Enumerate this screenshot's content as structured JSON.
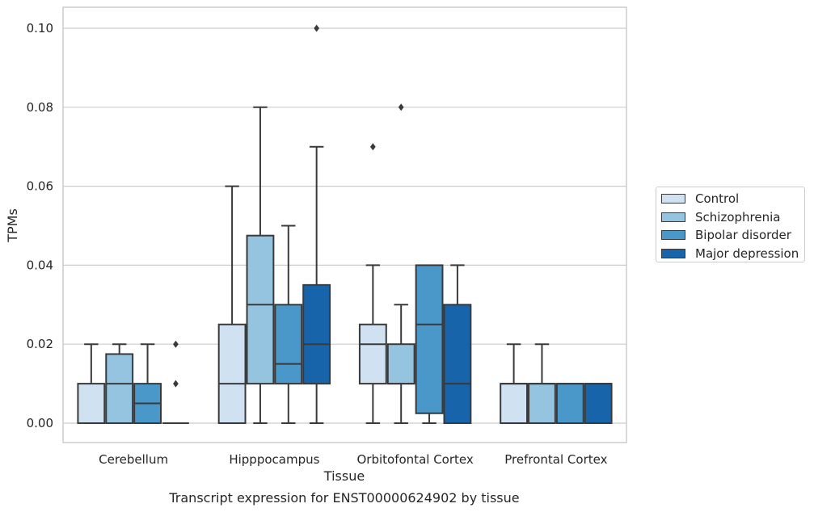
{
  "chart_data": {
    "type": "box",
    "title": "Transcript expression for ENST00000624902 by tissue",
    "xlabel": "Tissue",
    "ylabel": "TPMs",
    "ylim": [
      -0.005,
      0.105
    ],
    "yticks": [
      "0.00",
      "0.02",
      "0.04",
      "0.06",
      "0.08",
      "0.10"
    ],
    "grid": "horizontal",
    "legend_position": "right",
    "categories": [
      "Cerebellum",
      "Hipppocampus",
      "Orbitofontal Cortex",
      "Prefrontal Cortex"
    ],
    "series": [
      {
        "name": "Control",
        "color": "#d0e1f2",
        "boxes": [
          {
            "min": 0.0,
            "q1": 0.0,
            "median": 0.0,
            "q3": 0.01,
            "max": 0.02,
            "outliers": []
          },
          {
            "min": 0.0,
            "q1": 0.0,
            "median": 0.01,
            "q3": 0.025,
            "max": 0.06,
            "outliers": []
          },
          {
            "min": 0.0,
            "q1": 0.01,
            "median": 0.02,
            "q3": 0.025,
            "max": 0.04,
            "outliers": [
              0.07
            ]
          },
          {
            "min": 0.0,
            "q1": 0.0,
            "median": 0.01,
            "q3": 0.01,
            "max": 0.02,
            "outliers": []
          }
        ]
      },
      {
        "name": "Schizophrenia",
        "color": "#94c4df",
        "boxes": [
          {
            "min": 0.0,
            "q1": 0.0,
            "median": 0.01,
            "q3": 0.0175,
            "max": 0.02,
            "outliers": []
          },
          {
            "min": 0.0,
            "q1": 0.01,
            "median": 0.03,
            "q3": 0.0475,
            "max": 0.08,
            "outliers": []
          },
          {
            "min": 0.0,
            "q1": 0.01,
            "median": 0.01,
            "q3": 0.02,
            "max": 0.03,
            "outliers": [
              0.08
            ]
          },
          {
            "min": 0.0,
            "q1": 0.0,
            "median": 0.01,
            "q3": 0.01,
            "max": 0.02,
            "outliers": []
          }
        ]
      },
      {
        "name": "Bipolar disorder",
        "color": "#4a98c9",
        "boxes": [
          {
            "min": 0.0,
            "q1": 0.0,
            "median": 0.005,
            "q3": 0.01,
            "max": 0.02,
            "outliers": []
          },
          {
            "min": 0.0,
            "q1": 0.01,
            "median": 0.015,
            "q3": 0.03,
            "max": 0.05,
            "outliers": []
          },
          {
            "min": 0.0,
            "q1": 0.0025,
            "median": 0.025,
            "q3": 0.04,
            "max": 0.04,
            "outliers": []
          },
          {
            "min": 0.0,
            "q1": 0.0,
            "median": 0.01,
            "q3": 0.01,
            "max": 0.01,
            "outliers": []
          }
        ]
      },
      {
        "name": "Major depression",
        "color": "#1764ab",
        "boxes": [
          {
            "min": 0.0,
            "q1": 0.0,
            "median": 0.0,
            "q3": 0.0,
            "max": 0.0,
            "outliers": [
              0.01,
              0.02
            ]
          },
          {
            "min": 0.0,
            "q1": 0.01,
            "median": 0.02,
            "q3": 0.035,
            "max": 0.07,
            "outliers": [
              0.1
            ]
          },
          {
            "min": 0.0,
            "q1": 0.0,
            "median": 0.01,
            "q3": 0.03,
            "max": 0.04,
            "outliers": []
          },
          {
            "min": 0.0,
            "q1": 0.0,
            "median": 0.01,
            "q3": 0.01,
            "max": 0.01,
            "outliers": []
          }
        ]
      }
    ]
  }
}
